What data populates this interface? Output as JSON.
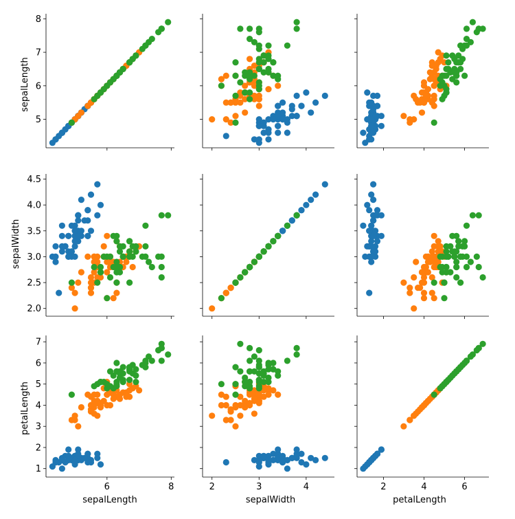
{
  "chart_data": {
    "type": "scatter",
    "layout": "pairplot-3x3",
    "variables": [
      "sepalLength",
      "sepalWidth",
      "petalLength"
    ],
    "axis_labels": {
      "x": [
        "sepalLength",
        "sepalWidth",
        "petalLength"
      ],
      "y": [
        "sepalLength",
        "sepalWidth",
        "petalLength"
      ]
    },
    "colors": [
      "#1f77b4",
      "#ff7f0e",
      "#2ca02c"
    ],
    "grid": false,
    "legend": "none",
    "axes": {
      "x": [
        {
          "range": [
            4.1,
            8.1
          ],
          "ticks": [
            6,
            8
          ],
          "tick_labels": [
            "6",
            "8"
          ]
        },
        {
          "range": [
            1.8,
            4.6
          ],
          "ticks": [
            2,
            3,
            4
          ],
          "tick_labels": [
            "2",
            "3",
            "4"
          ]
        },
        {
          "range": [
            0.7,
            7.2
          ],
          "ticks": [
            2,
            4,
            6
          ],
          "tick_labels": [
            "2",
            "4",
            "6"
          ]
        }
      ],
      "y": [
        {
          "range": [
            4.15,
            8.15
          ],
          "ticks": [
            5,
            6,
            7,
            8
          ],
          "tick_labels": [
            "5",
            "6",
            "7",
            "8"
          ]
        },
        {
          "range": [
            1.85,
            4.6
          ],
          "ticks": [
            2.0,
            2.5,
            3.0,
            3.5,
            4.0,
            4.5
          ],
          "tick_labels": [
            "2.0",
            "2.5",
            "3.0",
            "3.5",
            "4.0",
            "4.5"
          ]
        },
        {
          "range": [
            0.6,
            7.3
          ],
          "ticks": [
            1,
            2,
            3,
            4,
            5,
            6,
            7
          ],
          "tick_labels": [
            "1",
            "2",
            "3",
            "4",
            "5",
            "6",
            "7"
          ]
        }
      ]
    },
    "series": [
      {
        "points": [
          [
            5.1,
            3.5,
            1.4
          ],
          [
            4.9,
            3.0,
            1.4
          ],
          [
            4.7,
            3.2,
            1.3
          ],
          [
            4.6,
            3.1,
            1.5
          ],
          [
            5.0,
            3.6,
            1.4
          ],
          [
            5.4,
            3.9,
            1.7
          ],
          [
            4.6,
            3.4,
            1.4
          ],
          [
            5.0,
            3.4,
            1.5
          ],
          [
            4.4,
            2.9,
            1.4
          ],
          [
            4.9,
            3.1,
            1.5
          ],
          [
            5.4,
            3.7,
            1.5
          ],
          [
            4.8,
            3.4,
            1.6
          ],
          [
            4.8,
            3.0,
            1.4
          ],
          [
            4.3,
            3.0,
            1.1
          ],
          [
            5.8,
            4.0,
            1.2
          ],
          [
            5.7,
            4.4,
            1.5
          ],
          [
            5.4,
            3.9,
            1.3
          ],
          [
            5.1,
            3.5,
            1.4
          ],
          [
            5.7,
            3.8,
            1.7
          ],
          [
            5.1,
            3.8,
            1.5
          ],
          [
            5.4,
            3.4,
            1.7
          ],
          [
            5.1,
            3.7,
            1.5
          ],
          [
            4.6,
            3.6,
            1.0
          ],
          [
            5.1,
            3.3,
            1.7
          ],
          [
            4.8,
            3.4,
            1.9
          ],
          [
            5.0,
            3.0,
            1.6
          ],
          [
            5.0,
            3.4,
            1.6
          ],
          [
            5.2,
            3.5,
            1.5
          ],
          [
            5.2,
            3.4,
            1.4
          ],
          [
            4.7,
            3.2,
            1.6
          ],
          [
            4.8,
            3.1,
            1.6
          ],
          [
            5.4,
            3.4,
            1.5
          ],
          [
            5.2,
            4.1,
            1.5
          ],
          [
            5.5,
            4.2,
            1.4
          ],
          [
            4.9,
            3.1,
            1.5
          ],
          [
            5.0,
            3.2,
            1.2
          ],
          [
            5.5,
            3.5,
            1.3
          ],
          [
            4.9,
            3.6,
            1.4
          ],
          [
            4.4,
            3.0,
            1.3
          ],
          [
            5.1,
            3.4,
            1.5
          ],
          [
            5.0,
            3.5,
            1.3
          ],
          [
            4.5,
            2.3,
            1.3
          ],
          [
            4.4,
            3.2,
            1.3
          ],
          [
            5.0,
            3.5,
            1.6
          ],
          [
            5.1,
            3.8,
            1.9
          ],
          [
            4.8,
            3.0,
            1.4
          ],
          [
            5.1,
            3.8,
            1.6
          ],
          [
            4.6,
            3.2,
            1.4
          ],
          [
            5.3,
            3.7,
            1.5
          ],
          [
            5.0,
            3.3,
            1.4
          ]
        ]
      },
      {
        "points": [
          [
            7.0,
            3.2,
            4.7
          ],
          [
            6.4,
            3.2,
            4.5
          ],
          [
            6.9,
            3.1,
            4.9
          ],
          [
            5.5,
            2.3,
            4.0
          ],
          [
            6.5,
            2.8,
            4.6
          ],
          [
            5.7,
            2.8,
            4.5
          ],
          [
            6.3,
            3.3,
            4.7
          ],
          [
            4.9,
            2.4,
            3.3
          ],
          [
            6.6,
            2.9,
            4.6
          ],
          [
            5.2,
            2.7,
            3.9
          ],
          [
            5.0,
            2.0,
            3.5
          ],
          [
            5.9,
            3.0,
            4.2
          ],
          [
            6.0,
            2.2,
            4.0
          ],
          [
            6.1,
            2.9,
            4.7
          ],
          [
            5.6,
            2.9,
            3.6
          ],
          [
            6.7,
            3.1,
            4.4
          ],
          [
            5.6,
            3.0,
            4.5
          ],
          [
            5.8,
            2.7,
            4.1
          ],
          [
            6.2,
            2.2,
            4.5
          ],
          [
            5.6,
            2.5,
            3.9
          ],
          [
            5.9,
            3.2,
            4.8
          ],
          [
            6.1,
            2.8,
            4.0
          ],
          [
            6.3,
            2.5,
            4.9
          ],
          [
            6.1,
            2.8,
            4.7
          ],
          [
            6.4,
            2.9,
            4.3
          ],
          [
            6.6,
            3.0,
            4.4
          ],
          [
            6.8,
            2.8,
            4.8
          ],
          [
            6.7,
            3.0,
            5.0
          ],
          [
            6.0,
            2.9,
            4.5
          ],
          [
            5.7,
            2.6,
            3.5
          ],
          [
            5.5,
            2.4,
            3.8
          ],
          [
            5.5,
            2.4,
            3.7
          ],
          [
            5.8,
            2.7,
            3.9
          ],
          [
            6.0,
            2.7,
            5.1
          ],
          [
            5.4,
            3.0,
            4.5
          ],
          [
            6.0,
            3.4,
            4.5
          ],
          [
            6.7,
            3.1,
            4.7
          ],
          [
            6.3,
            2.3,
            4.4
          ],
          [
            5.6,
            3.0,
            4.1
          ],
          [
            5.5,
            2.5,
            4.0
          ],
          [
            5.5,
            2.6,
            4.4
          ],
          [
            6.1,
            3.0,
            4.6
          ],
          [
            5.8,
            2.6,
            4.0
          ],
          [
            5.0,
            2.3,
            3.3
          ],
          [
            5.6,
            2.7,
            4.2
          ],
          [
            5.7,
            3.0,
            4.2
          ],
          [
            5.7,
            2.9,
            4.2
          ],
          [
            6.2,
            2.9,
            4.3
          ],
          [
            5.1,
            2.5,
            3.0
          ],
          [
            5.7,
            2.8,
            4.1
          ]
        ]
      },
      {
        "points": [
          [
            6.3,
            3.3,
            6.0
          ],
          [
            5.8,
            2.7,
            5.1
          ],
          [
            7.1,
            3.0,
            5.9
          ],
          [
            6.3,
            2.9,
            5.6
          ],
          [
            6.5,
            3.0,
            5.8
          ],
          [
            7.6,
            3.0,
            6.6
          ],
          [
            4.9,
            2.5,
            4.5
          ],
          [
            7.3,
            2.9,
            6.3
          ],
          [
            6.7,
            2.5,
            5.8
          ],
          [
            7.2,
            3.6,
            6.1
          ],
          [
            6.5,
            3.2,
            5.1
          ],
          [
            6.4,
            2.7,
            5.3
          ],
          [
            6.8,
            3.0,
            5.5
          ],
          [
            5.7,
            2.5,
            5.0
          ],
          [
            5.8,
            2.8,
            5.1
          ],
          [
            6.4,
            3.2,
            5.3
          ],
          [
            6.5,
            3.0,
            5.5
          ],
          [
            7.7,
            3.8,
            6.7
          ],
          [
            7.7,
            2.6,
            6.9
          ],
          [
            6.0,
            2.2,
            5.0
          ],
          [
            6.9,
            3.2,
            5.7
          ],
          [
            5.6,
            2.8,
            4.9
          ],
          [
            7.7,
            2.8,
            6.7
          ],
          [
            6.3,
            2.7,
            4.9
          ],
          [
            6.7,
            3.3,
            5.7
          ],
          [
            7.2,
            3.2,
            6.0
          ],
          [
            6.2,
            2.8,
            4.8
          ],
          [
            6.1,
            3.0,
            4.9
          ],
          [
            6.4,
            2.8,
            5.6
          ],
          [
            7.2,
            3.0,
            5.8
          ],
          [
            7.4,
            2.8,
            6.1
          ],
          [
            7.9,
            3.8,
            6.4
          ],
          [
            6.4,
            2.8,
            5.6
          ],
          [
            6.3,
            2.8,
            5.1
          ],
          [
            6.1,
            2.6,
            5.6
          ],
          [
            7.7,
            3.0,
            6.1
          ],
          [
            6.3,
            3.4,
            5.6
          ],
          [
            6.4,
            3.1,
            5.5
          ],
          [
            6.0,
            3.0,
            4.8
          ],
          [
            6.9,
            3.1,
            5.4
          ],
          [
            6.7,
            3.1,
            5.6
          ],
          [
            6.9,
            3.1,
            5.1
          ],
          [
            5.8,
            2.7,
            5.1
          ],
          [
            6.8,
            3.2,
            5.9
          ],
          [
            6.7,
            3.3,
            5.7
          ],
          [
            6.7,
            3.0,
            5.2
          ],
          [
            6.3,
            2.5,
            5.0
          ],
          [
            6.5,
            3.0,
            5.2
          ],
          [
            6.2,
            3.4,
            5.4
          ],
          [
            5.9,
            3.0,
            5.1
          ]
        ]
      }
    ]
  }
}
